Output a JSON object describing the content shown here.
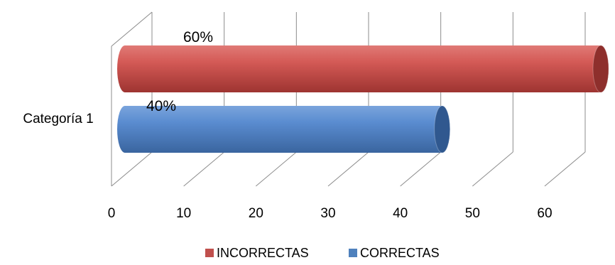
{
  "chart_data": {
    "type": "bar",
    "orientation": "horizontal",
    "style": "3d-cylinder",
    "categories": [
      "Categoría 1"
    ],
    "series": [
      {
        "name": "INCORRECTAS",
        "values": [
          60
        ],
        "data_label": "60%",
        "color": "#C0504D"
      },
      {
        "name": "CORRECTAS",
        "values": [
          40
        ],
        "data_label": "40%",
        "color": "#4F81BD"
      }
    ],
    "xlim": [
      0,
      60
    ],
    "xticks": [
      0,
      10,
      20,
      30,
      40,
      50,
      60
    ],
    "grid": true,
    "legend_position": "bottom"
  }
}
